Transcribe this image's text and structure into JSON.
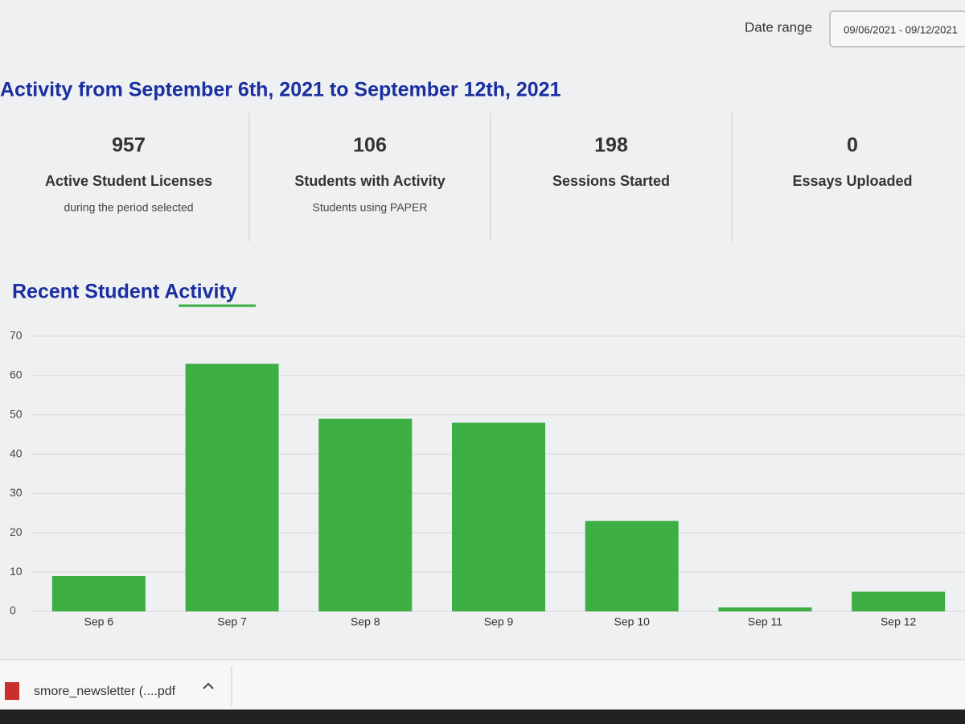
{
  "header": {
    "date_range_label": "Date range",
    "date_range_value": "09/06/2021 - 09/12/2021"
  },
  "title": "Activity from September 6th, 2021 to September 12th, 2021",
  "stats": [
    {
      "value": 957,
      "label": "Active Student Licenses",
      "sublabel": "during the period selected"
    },
    {
      "value": 106,
      "label": "Students with Activity",
      "sublabel": "Students using PAPER"
    },
    {
      "value": 198,
      "label": "Sessions Started"
    },
    {
      "value": 0,
      "label": "Essays Uploaded"
    }
  ],
  "chart_data": {
    "type": "bar",
    "title": "Recent Student Activity",
    "categories": [
      "Sep 6",
      "Sep 7",
      "Sep 8",
      "Sep 9",
      "Sep 10",
      "Sep 11",
      "Sep 12"
    ],
    "values": [
      9,
      63,
      49,
      48,
      23,
      1,
      5
    ],
    "color": "#3cae42",
    "ylim": [
      0,
      70
    ],
    "yticks": [
      0,
      10,
      20,
      30,
      40,
      50,
      60,
      70
    ],
    "grid": true
  },
  "download_bar": {
    "file_name": "smore_newsletter (....pdf"
  }
}
